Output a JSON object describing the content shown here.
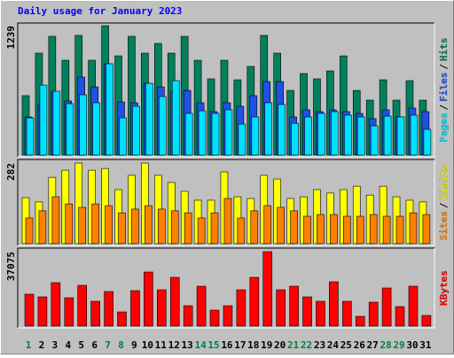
{
  "chart_data": [
    {
      "type": "bar",
      "title": "Daily usage for January 2023",
      "title_color": "#0000ff",
      "ylim": [
        0,
        1239
      ],
      "yticks": [
        1239
      ],
      "legend_separator": "/",
      "series": [
        {
          "name": "Pages",
          "color": "#00e0ff",
          "values": [
            356,
            670,
            611,
            492,
            577,
            501,
            874,
            356,
            467,
            687,
            560,
            713,
            399,
            424,
            399,
            433,
            297,
            365,
            501,
            484,
            305,
            365,
            399,
            416,
            382,
            365,
            280,
            373,
            365,
            382,
            246
          ]
        },
        {
          "name": "Files",
          "color": "#2050e8",
          "values": [
            365,
            484,
            603,
            518,
            747,
            653,
            874,
            509,
            501,
            687,
            653,
            603,
            619,
            501,
            416,
            501,
            467,
            569,
            704,
            704,
            365,
            433,
            416,
            433,
            416,
            399,
            348,
            433,
            365,
            450,
            416
          ]
        },
        {
          "name": "Hits",
          "color": "#00805c",
          "values": [
            569,
            976,
            1137,
            908,
            1146,
            908,
            1239,
            950,
            1137,
            976,
            1069,
            976,
            1137,
            908,
            730,
            908,
            721,
            849,
            1146,
            976,
            619,
            781,
            730,
            806,
            950,
            619,
            526,
            721,
            526,
            713,
            526
          ]
        }
      ]
    },
    {
      "type": "bar",
      "ylim": [
        0,
        282
      ],
      "yticks": [
        282
      ],
      "legend_separator": "/",
      "series": [
        {
          "name": "Sites",
          "color": "#ff8000",
          "values": [
            90,
            115,
            164,
            139,
            127,
            139,
            133,
            108,
            121,
            133,
            121,
            115,
            108,
            90,
            108,
            158,
            90,
            115,
            133,
            127,
            115,
            96,
            102,
            102,
            96,
            96,
            102,
            96,
            96,
            108,
            102
          ]
        },
        {
          "name": "Visits",
          "color": "#ffff00",
          "values": [
            161,
            146,
            232,
            257,
            282,
            257,
            263,
            189,
            239,
            282,
            239,
            214,
            183,
            152,
            152,
            251,
            164,
            158,
            239,
            226,
            158,
            164,
            189,
            177,
            189,
            201,
            170,
            201,
            164,
            152,
            146
          ]
        }
      ]
    },
    {
      "type": "bar",
      "ylim": [
        0,
        37075
      ],
      "yticks": [
        37075
      ],
      "categories": [
        "1",
        "2",
        "3",
        "4",
        "5",
        "6",
        "7",
        "8",
        "9",
        "10",
        "11",
        "12",
        "13",
        "14",
        "15",
        "16",
        "17",
        "18",
        "19",
        "20",
        "21",
        "22",
        "23",
        "24",
        "25",
        "26",
        "27",
        "28",
        "29",
        "30",
        "31"
      ],
      "category_colors": [
        "#008040",
        "#000000",
        "#000000",
        "#000000",
        "#000000",
        "#000000",
        "#008040",
        "#008040",
        "#000000",
        "#000000",
        "#000000",
        "#000000",
        "#000000",
        "#008040",
        "#008040",
        "#000000",
        "#000000",
        "#000000",
        "#000000",
        "#000000",
        "#008040",
        "#008040",
        "#000000",
        "#000000",
        "#000000",
        "#000000",
        "#000000",
        "#008040",
        "#008040",
        "#000000",
        "#000000"
      ],
      "series": [
        {
          "name": "KBytes",
          "color": "#ff0000",
          "values": [
            15890,
            14566,
            21629,
            14125,
            20304,
            12359,
            17215,
            7062,
            17656,
            26925,
            18097,
            24277,
            10152,
            19863,
            7945,
            10152,
            18097,
            24277,
            37075,
            18097,
            19863,
            14566,
            12359,
            22070,
            12359,
            4855,
            11918,
            18980,
            9711,
            19863,
            5297
          ]
        }
      ]
    }
  ]
}
